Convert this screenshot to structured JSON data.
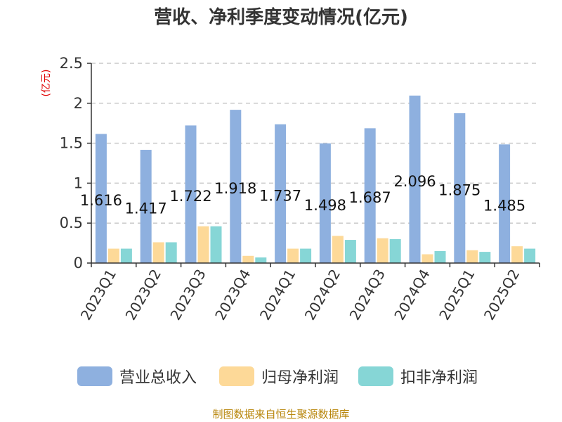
{
  "chart_data": {
    "type": "bar",
    "title": "营收、净利季度变动情况(亿元)",
    "yunit": "(亿元)",
    "ylim": [
      0,
      2.5
    ],
    "yticks": [
      0,
      0.5,
      1,
      1.5,
      2,
      2.5
    ],
    "ytick_labels": [
      "0",
      "0.5",
      "1",
      "1.5",
      "2",
      "2.5"
    ],
    "grid": true,
    "legend_position": "bottom",
    "categories": [
      "2023Q1",
      "2023Q2",
      "2023Q3",
      "2023Q4",
      "2024Q1",
      "2024Q2",
      "2024Q3",
      "2024Q4",
      "2025Q1",
      "2025Q2"
    ],
    "series": [
      {
        "name": "营业总收入",
        "color": "#8eb0df",
        "values": [
          1.616,
          1.417,
          1.722,
          1.918,
          1.737,
          1.498,
          1.687,
          2.096,
          1.875,
          1.485
        ]
      },
      {
        "name": "归母净利润",
        "color": "#fdd998",
        "values": [
          0.18,
          0.26,
          0.46,
          0.09,
          0.18,
          0.34,
          0.31,
          0.11,
          0.16,
          0.21
        ]
      },
      {
        "name": "扣非净利润",
        "color": "#86d6d6",
        "values": [
          0.18,
          0.26,
          0.46,
          0.07,
          0.18,
          0.29,
          0.3,
          0.15,
          0.14,
          0.18
        ]
      }
    ],
    "data_labels": [
      "1.616",
      "1.417",
      "1.722",
      "1.918",
      "1.737",
      "1.498",
      "1.687",
      "2.096",
      "1.875",
      "1.485"
    ],
    "source": "制图数据来自恒生聚源数据库"
  }
}
